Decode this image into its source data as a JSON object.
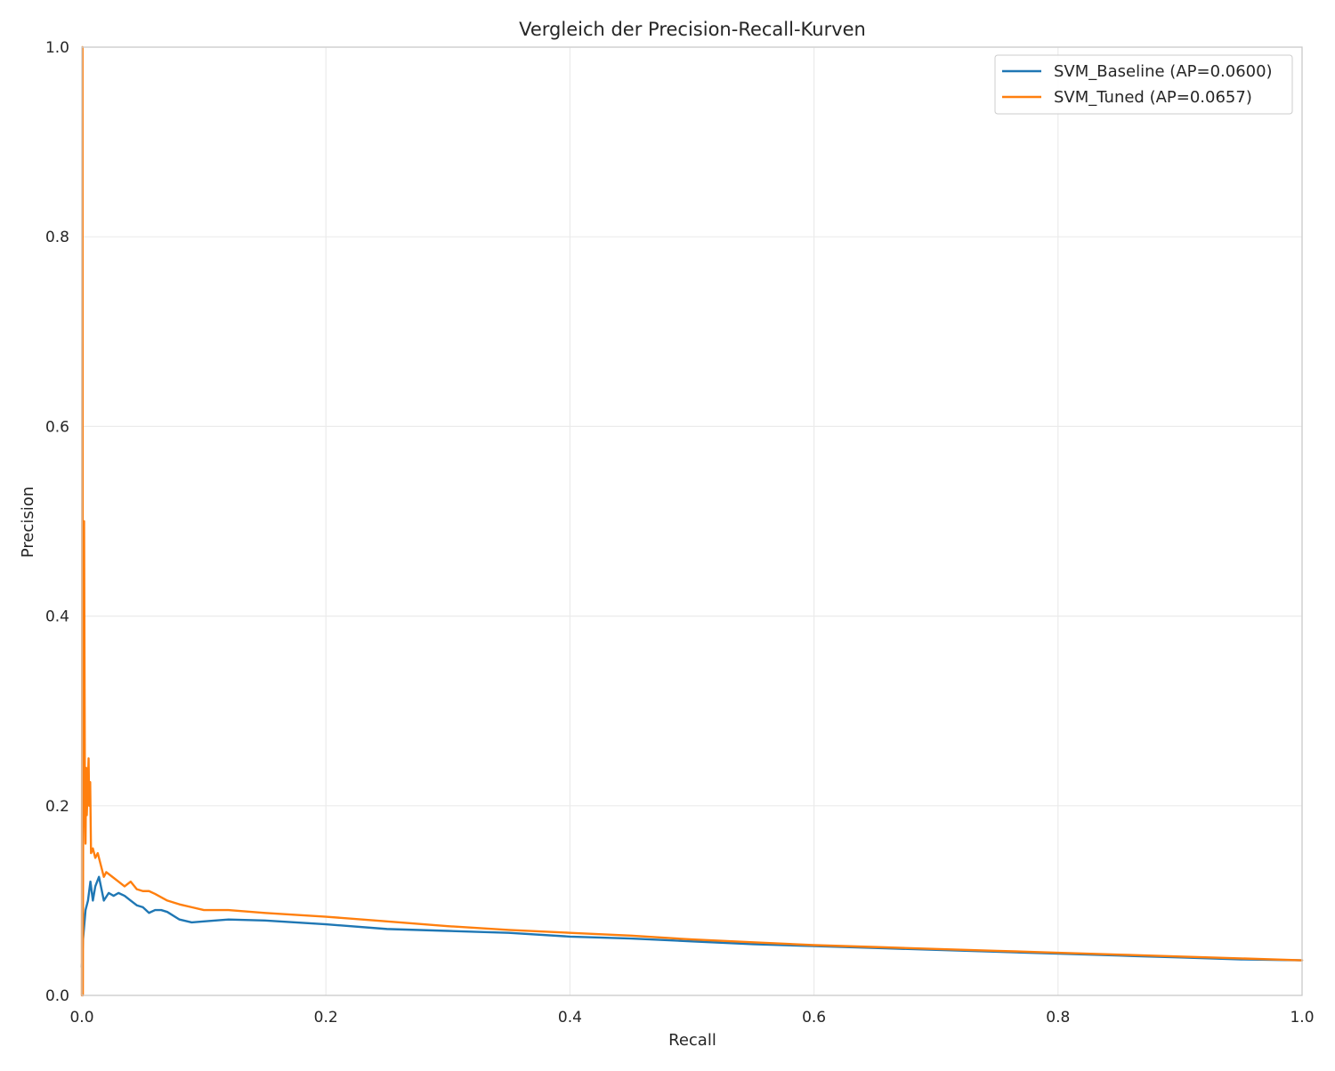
{
  "chart_data": {
    "type": "line",
    "title": "Vergleich der Precision-Recall-Kurven",
    "xlabel": "Recall",
    "ylabel": "Precision",
    "xlim": [
      0.0,
      1.0
    ],
    "ylim": [
      0.0,
      1.0
    ],
    "xticks": [
      "0.0",
      "0.2",
      "0.4",
      "0.6",
      "0.8",
      "1.0"
    ],
    "yticks": [
      "0.0",
      "0.2",
      "0.4",
      "0.6",
      "0.8",
      "1.0"
    ],
    "grid": true,
    "legend_position": "top-right",
    "series": [
      {
        "name": "SVM_Baseline (AP=0.0600)",
        "color": "#1f77b4",
        "x": [
          0.0,
          0.001,
          0.003,
          0.005,
          0.007,
          0.009,
          0.011,
          0.014,
          0.018,
          0.022,
          0.026,
          0.03,
          0.035,
          0.04,
          0.045,
          0.05,
          0.055,
          0.06,
          0.065,
          0.07,
          0.08,
          0.09,
          0.1,
          0.12,
          0.15,
          0.2,
          0.25,
          0.3,
          0.35,
          0.4,
          0.45,
          0.5,
          0.55,
          0.6,
          0.65,
          0.7,
          0.75,
          0.8,
          0.85,
          0.9,
          0.95,
          1.0
        ],
        "y": [
          0.03,
          0.06,
          0.09,
          0.1,
          0.12,
          0.1,
          0.115,
          0.125,
          0.1,
          0.108,
          0.105,
          0.108,
          0.105,
          0.1,
          0.095,
          0.093,
          0.087,
          0.09,
          0.09,
          0.088,
          0.08,
          0.077,
          0.078,
          0.08,
          0.079,
          0.075,
          0.07,
          0.068,
          0.066,
          0.062,
          0.06,
          0.057,
          0.054,
          0.052,
          0.05,
          0.048,
          0.046,
          0.044,
          0.042,
          0.04,
          0.038,
          0.037
        ]
      },
      {
        "name": "SVM_Tuned (AP=0.0657)",
        "color": "#ff7f0e",
        "x": [
          0.0,
          0.0005,
          0.0008,
          0.0012,
          0.0018,
          0.0025,
          0.003,
          0.0035,
          0.004,
          0.0048,
          0.0055,
          0.006,
          0.0068,
          0.0075,
          0.009,
          0.011,
          0.013,
          0.015,
          0.018,
          0.02,
          0.025,
          0.03,
          0.035,
          0.04,
          0.045,
          0.05,
          0.055,
          0.06,
          0.07,
          0.08,
          0.09,
          0.1,
          0.12,
          0.15,
          0.2,
          0.25,
          0.3,
          0.35,
          0.4,
          0.45,
          0.5,
          0.55,
          0.6,
          0.65,
          0.7,
          0.75,
          0.8,
          0.85,
          0.9,
          0.95,
          1.0
        ],
        "y": [
          0.0,
          1.0,
          0.0,
          0.33,
          0.5,
          0.2,
          0.16,
          0.24,
          0.19,
          0.22,
          0.25,
          0.2,
          0.225,
          0.15,
          0.155,
          0.145,
          0.15,
          0.14,
          0.125,
          0.13,
          0.125,
          0.12,
          0.115,
          0.12,
          0.112,
          0.11,
          0.11,
          0.107,
          0.1,
          0.096,
          0.093,
          0.09,
          0.09,
          0.087,
          0.083,
          0.078,
          0.073,
          0.069,
          0.066,
          0.063,
          0.059,
          0.056,
          0.053,
          0.051,
          0.049,
          0.047,
          0.045,
          0.043,
          0.041,
          0.039,
          0.037
        ]
      }
    ]
  }
}
